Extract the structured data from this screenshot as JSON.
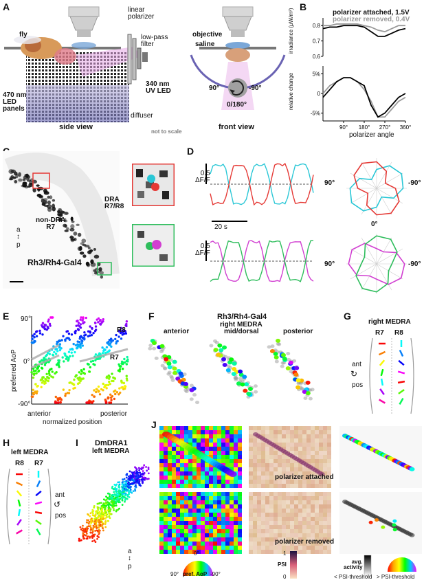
{
  "panels": {
    "A": {
      "label": "A",
      "fly": "fly",
      "linear_polarizer": "linear\npolarizer",
      "low_pass_filter": "low-pass\nfilter",
      "uv_led": "340 nm\nUV LED",
      "led_panels": "470 nm\nLED\npanels",
      "diffuser": "diffuser",
      "side_view": "side view",
      "not_to_scale": "not to scale",
      "objective": "objective",
      "saline": "saline",
      "front_view": "front view",
      "angle_left": "90°",
      "angle_right": "-90°",
      "angle_bottom": "0/180°"
    },
    "B": {
      "label": "B",
      "legend_attached": "polarizer attached, 1.5V",
      "legend_removed": "polarizer removed, 0.4V",
      "ylabel_top": "irradiance (µW/m²)",
      "ylabel_bottom": "relative change",
      "xlabel": "polarizer angle",
      "top_ticks": [
        "0.8",
        "0.7",
        "0.6"
      ],
      "bottom_ticks": [
        "5%",
        "0",
        "-5%"
      ],
      "x_ticks": [
        "90°",
        "180°",
        "270°",
        "360°"
      ]
    },
    "C": {
      "label": "C",
      "dra": "DRA\nR7/R8",
      "non_dra": "non-DRA\nR7",
      "axis_a": "a",
      "axis_p": "p",
      "genotype": "Rh3/Rh4-Gal4"
    },
    "D": {
      "label": "D",
      "scale_y": "0.5\nΔF/F",
      "scale_x": "20 s",
      "polar_left": "90°",
      "polar_right": "-90°",
      "polar_bottom": "0°"
    },
    "E": {
      "label": "E",
      "ylabel": "preferred AoP",
      "xlabel": "normalized position",
      "y_ticks": [
        "90°",
        "0°",
        "-90°"
      ],
      "x_left": "anterior",
      "x_right": "posterior",
      "r8": "R8",
      "r7": "R7"
    },
    "F": {
      "label": "F",
      "title1": "Rh3/Rh4-Gal4",
      "title2": "right MEDRA",
      "anterior": "anterior",
      "mid": "mid/dorsal",
      "posterior": "posterior"
    },
    "G": {
      "label": "G",
      "title": "right MEDRA",
      "r7": "R7",
      "r8": "R8",
      "ant": "ant",
      "pos": "pos"
    },
    "H": {
      "label": "H",
      "title": "left MEDRA",
      "r8": "R8",
      "r7": "R7",
      "ant": "ant",
      "pos": "pos"
    },
    "I": {
      "label": "I",
      "title1": "DmDRA1",
      "title2": "left MEDRA",
      "axis_a": "a",
      "axis_p": "p"
    },
    "J": {
      "label": "J",
      "attached": "polarizer attached",
      "removed": "polarizer removed",
      "wheel_top": "0°",
      "wheel_left": "90°",
      "wheel_right": "-90°",
      "wheel_label": "pref. AoP",
      "psi": "PSI",
      "psi_max": "1",
      "psi_min": "0",
      "avg_activity": "avg.\nactivity",
      "below_thresh": "< PSI-threshold",
      "above_thresh": "> PSI-threshold"
    }
  },
  "chart_data": [
    {
      "type": "line",
      "panel": "B-top",
      "ylabel": "irradiance (µW/m²)",
      "xlabel": "polarizer angle",
      "x": [
        0,
        30,
        60,
        90,
        120,
        150,
        180,
        210,
        240,
        270,
        300,
        330,
        360
      ],
      "ylim": [
        0.6,
        0.85
      ],
      "series": [
        {
          "name": "polarizer attached, 1.5V",
          "color": "#000000",
          "values": [
            0.78,
            0.79,
            0.79,
            0.8,
            0.8,
            0.8,
            0.79,
            0.76,
            0.73,
            0.73,
            0.75,
            0.77,
            0.78
          ]
        },
        {
          "name": "polarizer removed, 0.4V",
          "color": "#9a9a9a",
          "values": [
            0.8,
            0.8,
            0.81,
            0.81,
            0.81,
            0.81,
            0.8,
            0.79,
            0.77,
            0.76,
            0.78,
            0.8,
            0.8
          ]
        }
      ]
    },
    {
      "type": "line",
      "panel": "B-bottom",
      "ylabel": "relative change",
      "x": [
        0,
        30,
        60,
        90,
        120,
        150,
        180,
        210,
        240,
        270,
        300,
        330,
        360
      ],
      "ylim": [
        -7,
        7
      ],
      "series": [
        {
          "name": "polarizer attached, 1.5V",
          "color": "#000000",
          "values": [
            -1,
            1,
            3,
            4,
            4,
            3,
            2,
            -3,
            -6,
            -5,
            -3,
            -1,
            0
          ]
        },
        {
          "name": "polarizer removed, 0.4V",
          "color": "#9a9a9a",
          "values": [
            0,
            2,
            3,
            4,
            4,
            3,
            1,
            -2,
            -6,
            -6,
            -4,
            -2,
            -1
          ]
        }
      ]
    },
    {
      "type": "scatter",
      "panel": "E",
      "ylabel": "preferred AoP",
      "xlabel": "normalized position",
      "ylim": [
        -90,
        90
      ],
      "series": [
        {
          "name": "R8",
          "values": [
            [
              0.05,
              65
            ],
            [
              0.25,
              80
            ],
            [
              0.45,
              10
            ],
            [
              0.65,
              30
            ],
            [
              0.85,
              60
            ],
            [
              0.95,
              80
            ]
          ]
        },
        {
          "name": "R7",
          "values": [
            [
              0.05,
              -60
            ],
            [
              0.25,
              -20
            ],
            [
              0.45,
              -50
            ],
            [
              0.65,
              -30
            ],
            [
              0.85,
              5
            ],
            [
              0.95,
              15
            ]
          ]
        }
      ]
    }
  ]
}
